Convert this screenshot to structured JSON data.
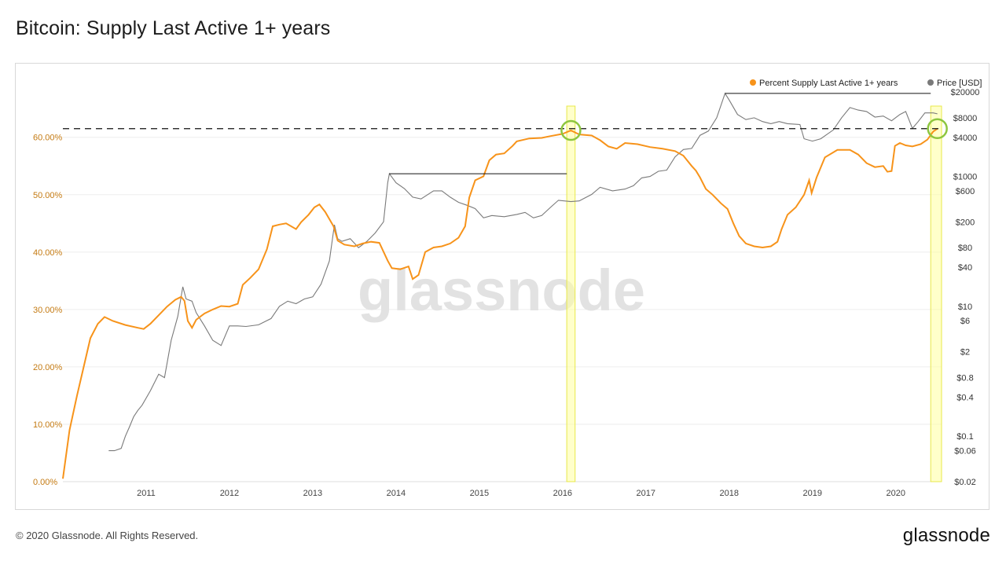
{
  "page": {
    "title": "Bitcoin: Supply Last Active 1+ years",
    "copyright": "© 2020 Glassnode. All Rights Reserved.",
    "brand": "glassnode",
    "watermark": "glassnode"
  },
  "colors": {
    "supply_line": "#f7931a",
    "price_line": "#7a7a7a",
    "highlight_fill": "#ffff9e",
    "highlight_stroke": "#e8e84a",
    "circle": "#8dc63f",
    "left_axis_text": "#c47a12",
    "grid": "#eeeeee"
  },
  "chart_data": {
    "type": "line",
    "title": "Bitcoin: Supply Last Active 1+ years",
    "legend_position": "top-right",
    "legend": [
      {
        "label": "Percent Supply Last Active 1+ years",
        "color": "#f7931a"
      },
      {
        "label": "Price [USD]",
        "color": "#7a7a7a"
      }
    ],
    "x_ticks": [
      "2011",
      "2012",
      "2013",
      "2014",
      "2015",
      "2016",
      "2017",
      "2018",
      "2019",
      "2020"
    ],
    "xlim": [
      2010.0,
      2020.55
    ],
    "left_axis": {
      "ticks": [
        "0.00%",
        "10.00%",
        "20.00%",
        "30.00%",
        "40.00%",
        "50.00%",
        "60.00%"
      ],
      "ylim": [
        0,
        69
      ]
    },
    "right_axis": {
      "scale": "log",
      "ticks": [
        "$20000",
        "$8000",
        "$4000",
        "$1000",
        "$600",
        "$200",
        "$80",
        "$40",
        "$10",
        "$6",
        "$2",
        "$0.8",
        "$0.4",
        "$0.1",
        "$0.06",
        "$0.02"
      ],
      "ylim": [
        0.02,
        25000
      ]
    },
    "series": [
      {
        "name": "Percent Supply Last Active 1+ years",
        "axis": "left",
        "points": [
          [
            2010.0,
            0.5
          ],
          [
            2010.08,
            9
          ],
          [
            2010.17,
            15
          ],
          [
            2010.25,
            20
          ],
          [
            2010.33,
            25
          ],
          [
            2010.42,
            27.5
          ],
          [
            2010.5,
            28.7
          ],
          [
            2010.6,
            28.0
          ],
          [
            2010.75,
            27.3
          ],
          [
            2010.9,
            26.8
          ],
          [
            2010.97,
            26.6
          ],
          [
            2011.05,
            27.5
          ],
          [
            2011.15,
            29.0
          ],
          [
            2011.25,
            30.5
          ],
          [
            2011.35,
            31.7
          ],
          [
            2011.42,
            32.2
          ],
          [
            2011.46,
            31.5
          ],
          [
            2011.5,
            28.0
          ],
          [
            2011.55,
            26.8
          ],
          [
            2011.6,
            28.2
          ],
          [
            2011.7,
            29.3
          ],
          [
            2011.8,
            30.0
          ],
          [
            2011.9,
            30.6
          ],
          [
            2012.0,
            30.5
          ],
          [
            2012.1,
            31.0
          ],
          [
            2012.16,
            34.3
          ],
          [
            2012.25,
            35.5
          ],
          [
            2012.35,
            37.0
          ],
          [
            2012.45,
            40.5
          ],
          [
            2012.52,
            44.5
          ],
          [
            2012.6,
            44.8
          ],
          [
            2012.68,
            45.0
          ],
          [
            2012.8,
            44.0
          ],
          [
            2012.86,
            45.2
          ],
          [
            2012.95,
            46.5
          ],
          [
            2013.02,
            47.8
          ],
          [
            2013.08,
            48.3
          ],
          [
            2013.15,
            47.0
          ],
          [
            2013.25,
            44.5
          ],
          [
            2013.3,
            42.0
          ],
          [
            2013.38,
            41.3
          ],
          [
            2013.5,
            41.0
          ],
          [
            2013.6,
            41.5
          ],
          [
            2013.7,
            41.8
          ],
          [
            2013.8,
            41.6
          ],
          [
            2013.9,
            38.5
          ],
          [
            2013.95,
            37.2
          ],
          [
            2014.05,
            37.0
          ],
          [
            2014.15,
            37.5
          ],
          [
            2014.2,
            35.3
          ],
          [
            2014.27,
            36.0
          ],
          [
            2014.35,
            40.0
          ],
          [
            2014.45,
            40.8
          ],
          [
            2014.55,
            41.0
          ],
          [
            2014.65,
            41.5
          ],
          [
            2014.75,
            42.5
          ],
          [
            2014.83,
            44.5
          ],
          [
            2014.88,
            49.5
          ],
          [
            2014.95,
            52.5
          ],
          [
            2015.05,
            53.2
          ],
          [
            2015.12,
            56.0
          ],
          [
            2015.2,
            57.0
          ],
          [
            2015.3,
            57.2
          ],
          [
            2015.4,
            58.5
          ],
          [
            2015.45,
            59.3
          ],
          [
            2015.6,
            59.8
          ],
          [
            2015.75,
            59.9
          ],
          [
            2015.85,
            60.2
          ],
          [
            2016.0,
            60.6
          ],
          [
            2016.1,
            61.2
          ],
          [
            2016.2,
            60.5
          ],
          [
            2016.35,
            60.3
          ],
          [
            2016.45,
            59.5
          ],
          [
            2016.55,
            58.4
          ],
          [
            2016.65,
            58.0
          ],
          [
            2016.75,
            59.0
          ],
          [
            2016.9,
            58.8
          ],
          [
            2017.05,
            58.3
          ],
          [
            2017.2,
            58.0
          ],
          [
            2017.35,
            57.6
          ],
          [
            2017.45,
            56.8
          ],
          [
            2017.55,
            55.0
          ],
          [
            2017.6,
            54.2
          ],
          [
            2017.65,
            53.0
          ],
          [
            2017.72,
            51.0
          ],
          [
            2017.8,
            50.0
          ],
          [
            2017.9,
            48.5
          ],
          [
            2017.98,
            47.5
          ],
          [
            2018.05,
            45.0
          ],
          [
            2018.12,
            42.8
          ],
          [
            2018.2,
            41.5
          ],
          [
            2018.3,
            41.0
          ],
          [
            2018.4,
            40.8
          ],
          [
            2018.5,
            41.0
          ],
          [
            2018.58,
            41.8
          ],
          [
            2018.63,
            44.0
          ],
          [
            2018.7,
            46.5
          ],
          [
            2018.8,
            47.8
          ],
          [
            2018.9,
            50.0
          ],
          [
            2018.96,
            52.5
          ],
          [
            2018.99,
            50.3
          ],
          [
            2019.05,
            53.0
          ],
          [
            2019.15,
            56.5
          ],
          [
            2019.3,
            57.8
          ],
          [
            2019.45,
            57.8
          ],
          [
            2019.55,
            57.0
          ],
          [
            2019.65,
            55.5
          ],
          [
            2019.75,
            54.8
          ],
          [
            2019.85,
            55.0
          ],
          [
            2019.9,
            54.0
          ],
          [
            2019.95,
            54.1
          ],
          [
            2019.99,
            58.5
          ],
          [
            2020.05,
            59.0
          ],
          [
            2020.12,
            58.6
          ],
          [
            2020.2,
            58.4
          ],
          [
            2020.3,
            58.8
          ],
          [
            2020.38,
            59.6
          ],
          [
            2020.45,
            61.0
          ],
          [
            2020.5,
            61.5
          ]
        ]
      },
      {
        "name": "Price [USD]",
        "axis": "right",
        "points": [
          [
            2010.55,
            0.06
          ],
          [
            2010.62,
            0.06
          ],
          [
            2010.7,
            0.065
          ],
          [
            2010.75,
            0.1
          ],
          [
            2010.8,
            0.14
          ],
          [
            2010.85,
            0.2
          ],
          [
            2010.9,
            0.25
          ],
          [
            2010.95,
            0.3
          ],
          [
            2011.05,
            0.5
          ],
          [
            2011.15,
            0.9
          ],
          [
            2011.22,
            0.8
          ],
          [
            2011.3,
            3
          ],
          [
            2011.38,
            7
          ],
          [
            2011.44,
            20
          ],
          [
            2011.48,
            13
          ],
          [
            2011.55,
            12
          ],
          [
            2011.6,
            8
          ],
          [
            2011.7,
            5
          ],
          [
            2011.8,
            3
          ],
          [
            2011.9,
            2.5
          ],
          [
            2012.0,
            5
          ],
          [
            2012.1,
            5
          ],
          [
            2012.2,
            4.9
          ],
          [
            2012.35,
            5.2
          ],
          [
            2012.5,
            6.5
          ],
          [
            2012.6,
            10
          ],
          [
            2012.7,
            12
          ],
          [
            2012.8,
            11
          ],
          [
            2012.9,
            13
          ],
          [
            2013.0,
            14
          ],
          [
            2013.1,
            22
          ],
          [
            2013.2,
            50
          ],
          [
            2013.26,
            180
          ],
          [
            2013.3,
            110
          ],
          [
            2013.35,
            100
          ],
          [
            2013.45,
            110
          ],
          [
            2013.55,
            80
          ],
          [
            2013.65,
            100
          ],
          [
            2013.75,
            135
          ],
          [
            2013.85,
            200
          ],
          [
            2013.9,
            800
          ],
          [
            2013.92,
            1100
          ],
          [
            2014.0,
            800
          ],
          [
            2014.1,
            650
          ],
          [
            2014.2,
            480
          ],
          [
            2014.3,
            450
          ],
          [
            2014.45,
            600
          ],
          [
            2014.55,
            600
          ],
          [
            2014.65,
            480
          ],
          [
            2014.75,
            400
          ],
          [
            2014.85,
            360
          ],
          [
            2014.95,
            320
          ],
          [
            2015.05,
            230
          ],
          [
            2015.15,
            250
          ],
          [
            2015.3,
            240
          ],
          [
            2015.45,
            260
          ],
          [
            2015.55,
            280
          ],
          [
            2015.65,
            230
          ],
          [
            2015.75,
            250
          ],
          [
            2015.85,
            330
          ],
          [
            2015.95,
            430
          ],
          [
            2016.1,
            410
          ],
          [
            2016.2,
            420
          ],
          [
            2016.35,
            530
          ],
          [
            2016.45,
            680
          ],
          [
            2016.6,
            600
          ],
          [
            2016.75,
            640
          ],
          [
            2016.85,
            720
          ],
          [
            2016.95,
            950
          ],
          [
            2017.05,
            1000
          ],
          [
            2017.15,
            1200
          ],
          [
            2017.25,
            1250
          ],
          [
            2017.35,
            2000
          ],
          [
            2017.45,
            2600
          ],
          [
            2017.55,
            2700
          ],
          [
            2017.65,
            4300
          ],
          [
            2017.75,
            5000
          ],
          [
            2017.85,
            8000
          ],
          [
            2017.95,
            19000
          ],
          [
            2018.0,
            15000
          ],
          [
            2018.1,
            9000
          ],
          [
            2018.2,
            7500
          ],
          [
            2018.3,
            8000
          ],
          [
            2018.4,
            7000
          ],
          [
            2018.5,
            6500
          ],
          [
            2018.6,
            7000
          ],
          [
            2018.7,
            6500
          ],
          [
            2018.85,
            6300
          ],
          [
            2018.9,
            3800
          ],
          [
            2019.0,
            3500
          ],
          [
            2019.1,
            3800
          ],
          [
            2019.25,
            5200
          ],
          [
            2019.35,
            8000
          ],
          [
            2019.45,
            11500
          ],
          [
            2019.55,
            10500
          ],
          [
            2019.65,
            10000
          ],
          [
            2019.75,
            8200
          ],
          [
            2019.85,
            8500
          ],
          [
            2019.95,
            7200
          ],
          [
            2020.05,
            9000
          ],
          [
            2020.12,
            10000
          ],
          [
            2020.2,
            5500
          ],
          [
            2020.27,
            7000
          ],
          [
            2020.35,
            9500
          ],
          [
            2020.45,
            9500
          ],
          [
            2020.5,
            9200
          ]
        ]
      }
    ],
    "annotations": {
      "dashed_level_percent": 61.5,
      "highlight_bands": [
        [
          2016.05,
          2016.15
        ],
        [
          2020.42,
          2020.55
        ]
      ],
      "circles": [
        [
          2016.1,
          61.2
        ],
        [
          2020.5,
          61.5
        ]
      ],
      "black_lines": [
        {
          "from": 2013.92,
          "to": 2016.05,
          "price": 1100
        },
        {
          "from": 2017.95,
          "to": 2020.42,
          "price": 19000
        }
      ]
    }
  }
}
